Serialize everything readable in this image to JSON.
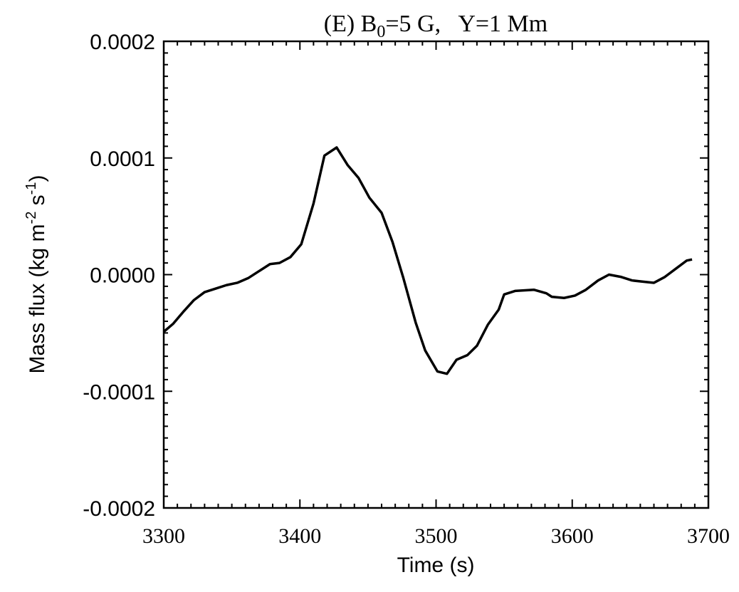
{
  "chart_data": {
    "type": "line",
    "title": [
      "(E) B",
      "0",
      "=5 G,   Y=1 Mm"
    ],
    "x_label": "Time (s)",
    "y_label": [
      "Mass flux (kg m",
      "-2",
      " s",
      "-1",
      ")"
    ],
    "xlim": [
      3300,
      3700
    ],
    "ylim": [
      -0.0002,
      0.0002
    ],
    "xticks": [
      3300,
      3400,
      3500,
      3600,
      3700
    ],
    "yticks": [
      -0.0002,
      -0.0001,
      {
        "value": 0,
        "label": "0.0000"
      },
      0.0001,
      0.0002
    ],
    "x": [
      3300,
      3307,
      3315,
      3322,
      3330,
      3338,
      3346,
      3354,
      3362,
      3370,
      3378,
      3385,
      3393,
      3401,
      3410,
      3418,
      3427,
      3435,
      3443,
      3451,
      3460,
      3468,
      3476,
      3485,
      3492,
      3501,
      3508,
      3515,
      3523,
      3530,
      3538,
      3546,
      3550,
      3558,
      3572,
      3581,
      3585,
      3594,
      3602,
      3610,
      3619,
      3627,
      3636,
      3644,
      3652,
      3660,
      3668,
      3676,
      3684,
      3688
    ],
    "series": [
      {
        "color": "#000000",
        "values": [
          -4.9e-05,
          -4.2e-05,
          -3.1e-05,
          -2.2e-05,
          -1.5e-05,
          -1.2e-05,
          -9e-06,
          -7e-06,
          -3e-06,
          3e-06,
          9e-06,
          1e-05,
          1.5e-05,
          2.6e-05,
          6.1e-05,
          0.000102,
          0.000109,
          9.4e-05,
          8.3e-05,
          6.6e-05,
          5.3e-05,
          2.8e-05,
          -3e-06,
          -4.1e-05,
          -6.5e-05,
          -8.3e-05,
          -8.5e-05,
          -7.3e-05,
          -6.9e-05,
          -6.1e-05,
          -4.3e-05,
          -3e-05,
          -1.7e-05,
          -1.4e-05,
          -1.3e-05,
          -1.6e-05,
          -1.9e-05,
          -2e-05,
          -1.8e-05,
          -1.3e-05,
          -5e-06,
          0,
          -2e-06,
          -5e-06,
          -6e-06,
          -7e-06,
          -2e-06,
          5e-06,
          1.2e-05,
          1.3e-05
        ]
      }
    ]
  }
}
